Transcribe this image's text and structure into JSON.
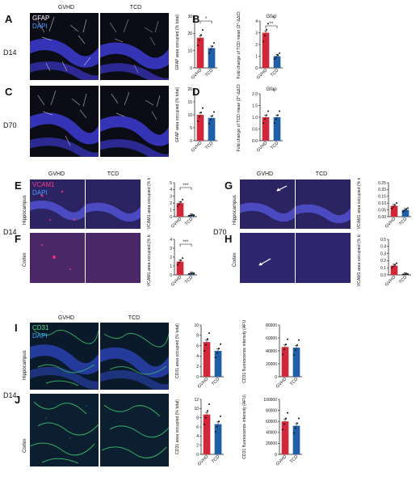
{
  "colors": {
    "gvhd": "#d0283a",
    "tcd": "#1f5fa8"
  },
  "top": {
    "col_gvhd": "GVHD",
    "col_tcd": "TCD",
    "stain1": "GFAP",
    "stain2": "DAPI",
    "row_d14": "D14",
    "row_d70": "D70",
    "panel_a": "A",
    "panel_b": "B",
    "panel_c": "C",
    "panel_d": "D"
  },
  "mid": {
    "left_gvhd": "GVHD",
    "left_tcd": "TCD",
    "right_gvhd": "GVHD",
    "right_tcd": "TCD",
    "stain1": "VCAM1",
    "stain2": "DAPI",
    "d14": "D14",
    "d70": "D70",
    "hippocampus": "Hippocampus",
    "cortex": "Cortex",
    "panel_e": "E",
    "panel_f": "F",
    "panel_g": "G",
    "panel_h": "H"
  },
  "bot": {
    "col_gvhd": "GVHD",
    "col_tcd": "TCD",
    "stain1": "CD31",
    "stain2": "DAPI",
    "d14": "D14",
    "hippocampus": "Hippocampus",
    "cortex": "Cortex",
    "panel_i": "I",
    "panel_j": "J"
  },
  "chart_data": [
    {
      "id": "A",
      "type": "bar",
      "categories": [
        "GVHD",
        "TCD"
      ],
      "values": [
        17.5,
        11.5
      ],
      "ylabel": "GFAP area occupied (% total)",
      "ylim": [
        0,
        30
      ],
      "yticks": [
        0,
        10,
        20,
        30
      ],
      "significance": "*"
    },
    {
      "id": "B",
      "type": "bar",
      "categories": [
        "GVHD",
        "TCD"
      ],
      "values": [
        3.0,
        1.0
      ],
      "title": "Gfap",
      "ylabel": "Fold change of TCD mean (2^-ΔΔCt)",
      "ylim": [
        0,
        4
      ],
      "yticks": [
        0,
        1,
        2,
        3,
        4
      ],
      "significance": "**"
    },
    {
      "id": "C",
      "type": "bar",
      "categories": [
        "GVHD",
        "TCD"
      ],
      "values": [
        10.0,
        8.8
      ],
      "ylabel": "GFAP area occupied (% total)",
      "ylim": [
        0,
        20
      ],
      "yticks": [
        0,
        5,
        10,
        15,
        20
      ]
    },
    {
      "id": "D",
      "type": "bar",
      "categories": [
        "GVHD",
        "TCD"
      ],
      "values": [
        1.0,
        1.0
      ],
      "title": "Gfap",
      "ylabel": "Fold change of TCD mean (2^-ΔΔCt)",
      "ylim": [
        0,
        2.0
      ],
      "yticks": [
        0.0,
        0.5,
        1.0,
        1.5,
        2.0
      ]
    },
    {
      "id": "E",
      "type": "bar",
      "categories": [
        "GVHD",
        "TCD"
      ],
      "values": [
        2.0,
        0.2
      ],
      "ylabel": "VCAM1 area occupied (% total)",
      "ylim": [
        0,
        5
      ],
      "yticks": [
        0,
        1,
        2,
        3,
        4,
        5
      ],
      "significance": "***"
    },
    {
      "id": "F",
      "type": "bar",
      "categories": [
        "GVHD",
        "TCD"
      ],
      "values": [
        1.5,
        0.15
      ],
      "ylabel": "VCAM1 area occupied (% total)",
      "ylim": [
        0,
        4
      ],
      "yticks": [
        0,
        1,
        2,
        3,
        4
      ],
      "significance": "***"
    },
    {
      "id": "G",
      "type": "bar",
      "categories": [
        "GVHD",
        "TCD"
      ],
      "values": [
        0.08,
        0.05
      ],
      "ylabel": "VCAM1 area occupied (% total)",
      "ylim": [
        0,
        0.25
      ],
      "yticks": [
        0.0,
        0.05,
        0.1,
        0.15,
        0.2,
        0.25
      ]
    },
    {
      "id": "H",
      "type": "bar",
      "categories": [
        "GVHD",
        "TCD"
      ],
      "values": [
        0.13,
        0.01
      ],
      "ylabel": "VCAM1 area occupied (% total)",
      "ylim": [
        0,
        0.5
      ],
      "yticks": [
        0.0,
        0.1,
        0.2,
        0.3,
        0.4,
        0.5
      ]
    },
    {
      "id": "I1",
      "type": "bar",
      "categories": [
        "GVHD",
        "TCD"
      ],
      "values": [
        6.7,
        5.0
      ],
      "ylabel": "CD31 area occupied (% total)",
      "ylim": [
        0,
        10
      ],
      "yticks": [
        0,
        2,
        4,
        6,
        8,
        10
      ]
    },
    {
      "id": "I2",
      "type": "bar",
      "categories": [
        "GVHD",
        "TCD"
      ],
      "values": [
        46000,
        45000
      ],
      "ylabel": "CD31 fluorescence intensity (AFU)",
      "ylim": [
        0,
        80000
      ],
      "yticks": [
        0,
        20000,
        40000,
        60000,
        80000
      ]
    },
    {
      "id": "J1",
      "type": "bar",
      "categories": [
        "GVHD",
        "TCD"
      ],
      "values": [
        8.7,
        6.6
      ],
      "ylabel": "CD31 area occupied (% total)",
      "ylim": [
        0,
        12
      ],
      "yticks": [
        0,
        2,
        4,
        6,
        8,
        10,
        12
      ]
    },
    {
      "id": "J2",
      "type": "bar",
      "categories": [
        "GVHD",
        "TCD"
      ],
      "values": [
        60000,
        52000
      ],
      "ylabel": "CD31 fluorescence intensity (AFU)",
      "ylim": [
        0,
        100000
      ],
      "yticks": [
        0,
        20000,
        40000,
        60000,
        80000,
        100000
      ]
    }
  ]
}
